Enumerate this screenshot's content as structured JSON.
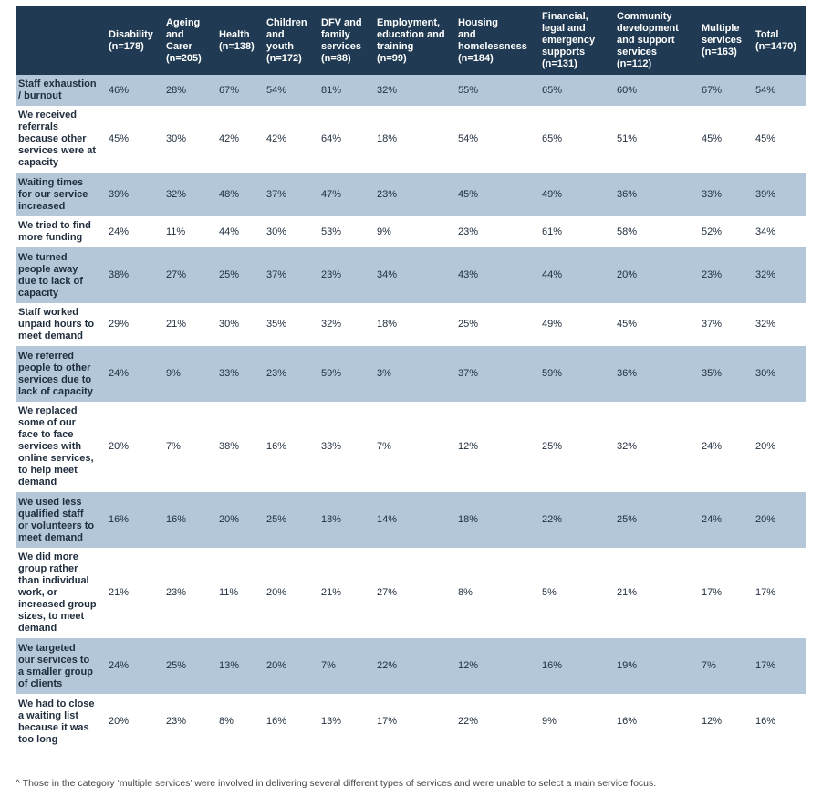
{
  "columns": [
    "",
    "Disability\n(n=178)",
    "Ageing\nand\nCarer\n(n=205)",
    "Health\n(n=138)",
    "Children\nand\nyouth\n(n=172)",
    "DFV and\nfamily\nservices\n(n=88)",
    "Employment,\neducation and\ntraining\n(n=99)",
    "Housing\nand\nhomelessness\n(n=184)",
    "Financial,\nlegal and\nemergency\nsupports\n(n=131)",
    "Community\ndevelopment\nand support\nservices\n(n=112)",
    "Multiple\nservices\n(n=163)",
    "Total\n(n=1470)"
  ],
  "rows": [
    {
      "label": "Staff exhaustion\n/ burnout",
      "values": [
        "46%",
        "28%",
        "67%",
        "54%",
        "81%",
        "32%",
        "55%",
        "65%",
        "60%",
        "67%",
        "54%"
      ]
    },
    {
      "label": "We received\nreferrals\nbecause other\nservices were at\ncapacity",
      "values": [
        "45%",
        "30%",
        "42%",
        "42%",
        "64%",
        "18%",
        "54%",
        "65%",
        "51%",
        "45%",
        "45%"
      ]
    },
    {
      "label": "Waiting times\nfor our service\nincreased",
      "values": [
        "39%",
        "32%",
        "48%",
        "37%",
        "47%",
        "23%",
        "45%",
        "49%",
        "36%",
        "33%",
        "39%"
      ]
    },
    {
      "label": "We tried to find\nmore funding",
      "values": [
        "24%",
        "11%",
        "44%",
        "30%",
        "53%",
        "9%",
        "23%",
        "61%",
        "58%",
        "52%",
        "34%"
      ]
    },
    {
      "label": "We turned\npeople away\ndue to lack of\ncapacity",
      "values": [
        "38%",
        "27%",
        "25%",
        "37%",
        "23%",
        "34%",
        "43%",
        "44%",
        "20%",
        "23%",
        "32%"
      ]
    },
    {
      "label": "Staff worked\nunpaid hours to\nmeet demand",
      "values": [
        "29%",
        "21%",
        "30%",
        "35%",
        "32%",
        "18%",
        "25%",
        "49%",
        "45%",
        "37%",
        "32%"
      ]
    },
    {
      "label": "We referred\npeople to other\nservices due to\nlack of capacity",
      "values": [
        "24%",
        "9%",
        "33%",
        "23%",
        "59%",
        "3%",
        "37%",
        "59%",
        "36%",
        "35%",
        "30%"
      ]
    },
    {
      "label": "We replaced\nsome of our\nface to face\nservices with\nonline services,\nto help meet\ndemand",
      "values": [
        "20%",
        "7%",
        "38%",
        "16%",
        "33%",
        "7%",
        "12%",
        "25%",
        "32%",
        "24%",
        "20%"
      ]
    },
    {
      "label": "We used less\nqualified staff\nor volunteers to\nmeet demand",
      "values": [
        "16%",
        "16%",
        "20%",
        "25%",
        "18%",
        "14%",
        "18%",
        "22%",
        "25%",
        "24%",
        "20%"
      ]
    },
    {
      "label": "We did more\ngroup rather\nthan individual\nwork, or\nincreased group\nsizes, to meet\ndemand",
      "values": [
        "21%",
        "23%",
        "11%",
        "20%",
        "21%",
        "27%",
        "8%",
        "5%",
        "21%",
        "17%",
        "17%"
      ]
    },
    {
      "label": "We targeted\nour services to\na smaller group\nof clients",
      "values": [
        "24%",
        "25%",
        "13%",
        "20%",
        "7%",
        "22%",
        "12%",
        "16%",
        "19%",
        "7%",
        "17%"
      ]
    },
    {
      "label": "We had to close\na waiting list\nbecause it was\ntoo long",
      "values": [
        "20%",
        "23%",
        "8%",
        "16%",
        "13%",
        "17%",
        "22%",
        "9%",
        "16%",
        "12%",
        "16%"
      ]
    }
  ],
  "footnote": "^ Those in the category ‘multiple services’ were involved in delivering several different types of services and were unable to select a main service focus.",
  "colors": {
    "header": "#1f3a52",
    "shaded_row": "#b3c7d9"
  }
}
